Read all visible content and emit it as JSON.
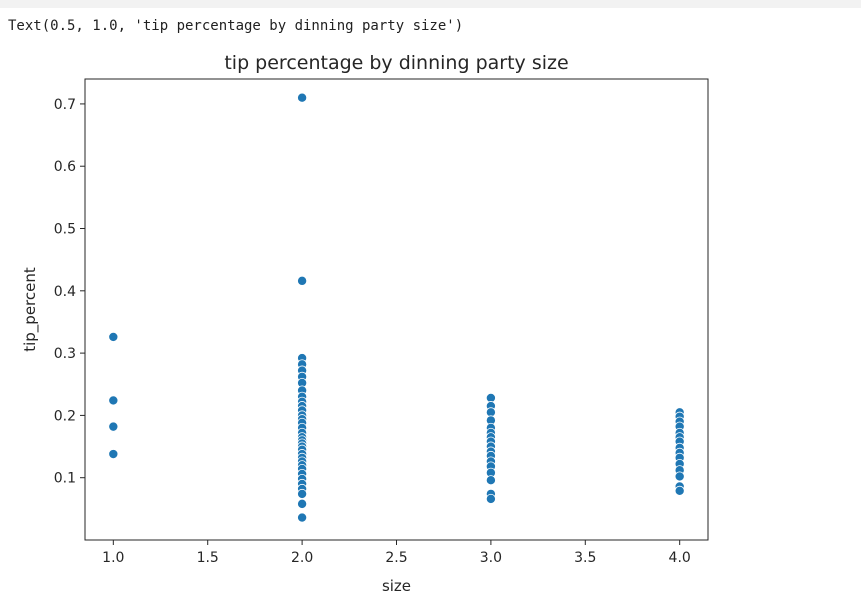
{
  "output": {
    "text": "Text(0.5, 1.0, 'tip percentage by dinning party size')"
  },
  "chart_data": {
    "type": "scatter",
    "title": "tip percentage by dinning party size",
    "xlabel": "size",
    "ylabel": "tip_percent",
    "xlim": [
      0.85,
      4.15
    ],
    "ylim": [
      0.0,
      0.74
    ],
    "xticks": [
      1.0,
      1.5,
      2.0,
      2.5,
      3.0,
      3.5,
      4.0
    ],
    "xtick_labels": [
      "1.0",
      "1.5",
      "2.0",
      "2.5",
      "3.0",
      "3.5",
      "4.0"
    ],
    "yticks": [
      0.1,
      0.2,
      0.3,
      0.4,
      0.5,
      0.6,
      0.7
    ],
    "ytick_labels": [
      "0.1",
      "0.2",
      "0.3",
      "0.4",
      "0.5",
      "0.6",
      "0.7"
    ],
    "grid": false,
    "marker_color": "#1f77b4",
    "points": [
      {
        "x": 1,
        "y": 0.326
      },
      {
        "x": 1,
        "y": 0.224
      },
      {
        "x": 1,
        "y": 0.182
      },
      {
        "x": 1,
        "y": 0.138
      },
      {
        "x": 2,
        "y": 0.71
      },
      {
        "x": 2,
        "y": 0.416
      },
      {
        "x": 2,
        "y": 0.292
      },
      {
        "x": 2,
        "y": 0.282
      },
      {
        "x": 2,
        "y": 0.272
      },
      {
        "x": 2,
        "y": 0.262
      },
      {
        "x": 2,
        "y": 0.252
      },
      {
        "x": 2,
        "y": 0.24
      },
      {
        "x": 2,
        "y": 0.23
      },
      {
        "x": 2,
        "y": 0.222
      },
      {
        "x": 2,
        "y": 0.215
      },
      {
        "x": 2,
        "y": 0.208
      },
      {
        "x": 2,
        "y": 0.2
      },
      {
        "x": 2,
        "y": 0.194
      },
      {
        "x": 2,
        "y": 0.188
      },
      {
        "x": 2,
        "y": 0.18
      },
      {
        "x": 2,
        "y": 0.172
      },
      {
        "x": 2,
        "y": 0.165
      },
      {
        "x": 2,
        "y": 0.16
      },
      {
        "x": 2,
        "y": 0.155
      },
      {
        "x": 2,
        "y": 0.15
      },
      {
        "x": 2,
        "y": 0.145
      },
      {
        "x": 2,
        "y": 0.138
      },
      {
        "x": 2,
        "y": 0.132
      },
      {
        "x": 2,
        "y": 0.126
      },
      {
        "x": 2,
        "y": 0.12
      },
      {
        "x": 2,
        "y": 0.114
      },
      {
        "x": 2,
        "y": 0.106
      },
      {
        "x": 2,
        "y": 0.098
      },
      {
        "x": 2,
        "y": 0.09
      },
      {
        "x": 2,
        "y": 0.082
      },
      {
        "x": 2,
        "y": 0.074
      },
      {
        "x": 2,
        "y": 0.058
      },
      {
        "x": 2,
        "y": 0.036
      },
      {
        "x": 3,
        "y": 0.228
      },
      {
        "x": 3,
        "y": 0.215
      },
      {
        "x": 3,
        "y": 0.205
      },
      {
        "x": 3,
        "y": 0.192
      },
      {
        "x": 3,
        "y": 0.18
      },
      {
        "x": 3,
        "y": 0.172
      },
      {
        "x": 3,
        "y": 0.165
      },
      {
        "x": 3,
        "y": 0.158
      },
      {
        "x": 3,
        "y": 0.15
      },
      {
        "x": 3,
        "y": 0.142
      },
      {
        "x": 3,
        "y": 0.135
      },
      {
        "x": 3,
        "y": 0.126
      },
      {
        "x": 3,
        "y": 0.118
      },
      {
        "x": 3,
        "y": 0.108
      },
      {
        "x": 3,
        "y": 0.096
      },
      {
        "x": 3,
        "y": 0.074
      },
      {
        "x": 3,
        "y": 0.066
      },
      {
        "x": 4,
        "y": 0.205
      },
      {
        "x": 4,
        "y": 0.198
      },
      {
        "x": 4,
        "y": 0.19
      },
      {
        "x": 4,
        "y": 0.182
      },
      {
        "x": 4,
        "y": 0.172
      },
      {
        "x": 4,
        "y": 0.165
      },
      {
        "x": 4,
        "y": 0.158
      },
      {
        "x": 4,
        "y": 0.148
      },
      {
        "x": 4,
        "y": 0.14
      },
      {
        "x": 4,
        "y": 0.132
      },
      {
        "x": 4,
        "y": 0.122
      },
      {
        "x": 4,
        "y": 0.112
      },
      {
        "x": 4,
        "y": 0.102
      },
      {
        "x": 4,
        "y": 0.086
      },
      {
        "x": 4,
        "y": 0.079
      }
    ]
  }
}
